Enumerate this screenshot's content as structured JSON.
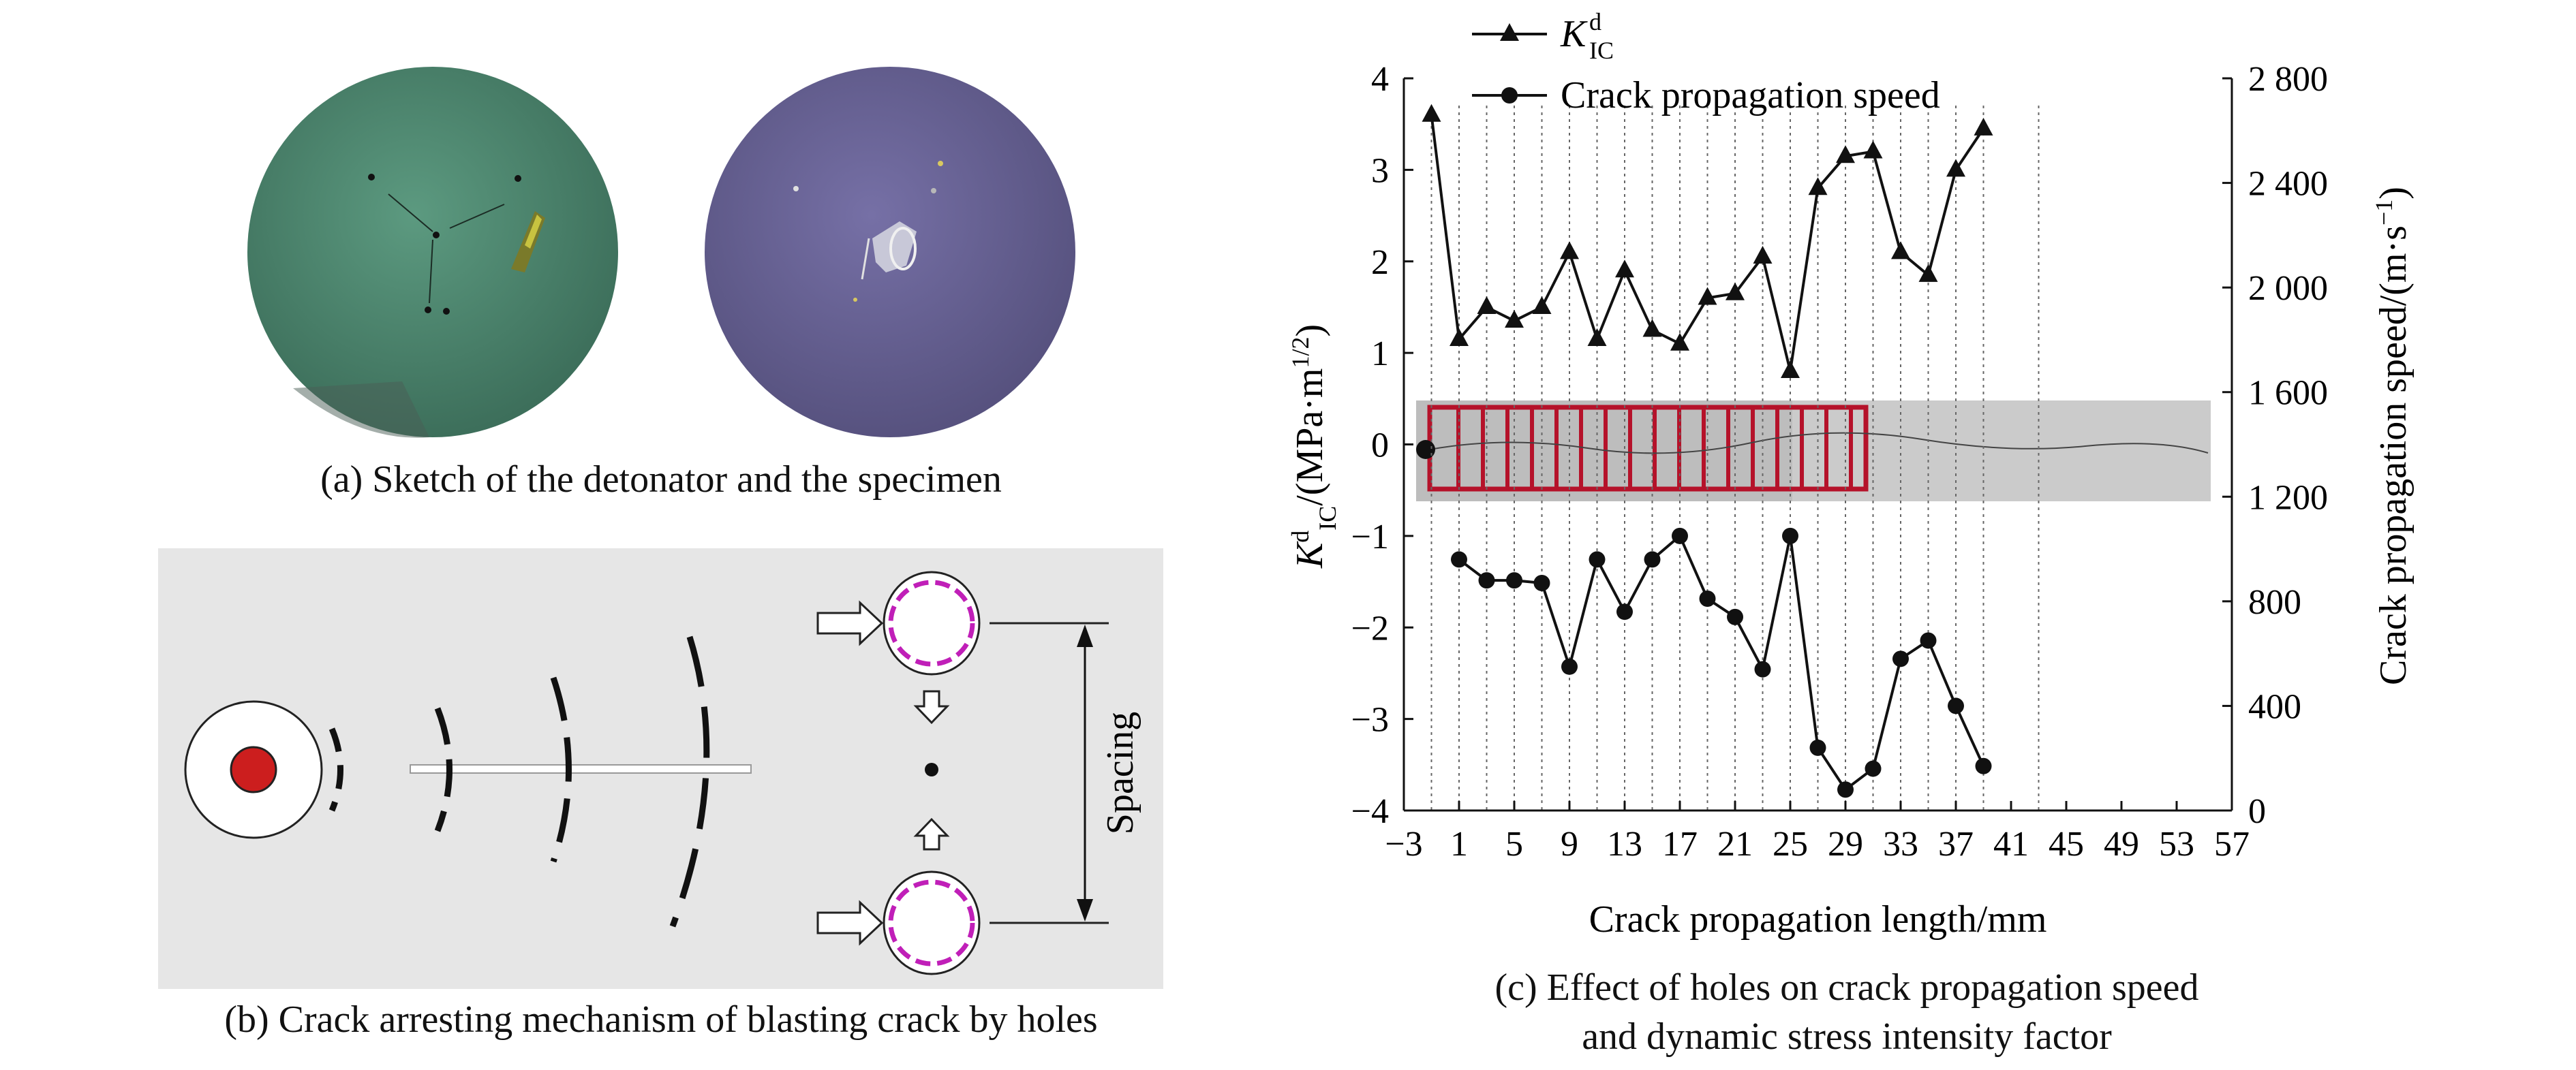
{
  "panel_a": {
    "caption": "(a) Sketch of the detonator and the specimen"
  },
  "panel_b": {
    "caption": "(b) Crack arresting mechanism of blasting crack by holes",
    "spacing_label": "Spacing"
  },
  "panel_c": {
    "caption_line1": "(c) Effect of holes on crack propagation speed",
    "caption_line2": "and dynamic stress intensity factor"
  },
  "colors": {
    "green_disk": "#4f8a72",
    "purple_disk": "#6b6597",
    "crack_red": "#b5122a",
    "hole_magenta": "#c01fb8",
    "strip_gray": "#bdbdbd"
  },
  "chart_data": {
    "type": "line",
    "xlabel": "Crack propagation length/mm",
    "ylabel_left": "K",
    "ylabel_left_sup": "d",
    "ylabel_left_sub": "IC",
    "ylabel_left_rest": "/(MPa·m",
    "ylabel_left_exp": "1/2",
    "ylabel_left_close": ")",
    "ylabel_right": "Crack propagation speed/(m·s",
    "ylabel_right_exp": "−1",
    "ylabel_right_close": ")",
    "xlim": [
      -3,
      57
    ],
    "ylim_left": [
      -4,
      4
    ],
    "ylim_right": [
      0,
      2800
    ],
    "x_ticks": [
      "−3",
      "1",
      "5",
      "9",
      "13",
      "17",
      "21",
      "25",
      "29",
      "33",
      "37",
      "41",
      "45",
      "49",
      "53",
      "57"
    ],
    "left_ticks": [
      "−4",
      "−3",
      "−2",
      "−1",
      "0",
      "1",
      "2",
      "3",
      "4"
    ],
    "right_ticks": [
      "0",
      "400",
      "800",
      "1 200",
      "1 600",
      "2 000",
      "2 400",
      "2 800"
    ],
    "legend": {
      "placement": "top-left",
      "k_label": "K",
      "k_sup": "d",
      "k_sub": "IC",
      "speed_label": "Crack propagation speed"
    },
    "series": [
      {
        "name": "KdIC",
        "axis": "left",
        "marker": "triangle",
        "x": [
          -1,
          1,
          3,
          5,
          7,
          9,
          11,
          13,
          15,
          17,
          19,
          21,
          23,
          25,
          27,
          29,
          31,
          33,
          35,
          37,
          39
        ],
        "y": [
          3.6,
          1.15,
          1.5,
          1.35,
          1.5,
          2.1,
          1.15,
          1.9,
          1.25,
          1.1,
          1.6,
          1.65,
          2.05,
          0.8,
          2.8,
          3.15,
          3.2,
          2.1,
          1.85,
          3.0,
          3.45
        ]
      },
      {
        "name": "Crack propagation speed",
        "axis": "right",
        "marker": "circle",
        "x": [
          1,
          3,
          5,
          7,
          9,
          11,
          13,
          15,
          17,
          19,
          21,
          23,
          25,
          27,
          29,
          31,
          33,
          35,
          37,
          39
        ],
        "y": [
          960,
          880,
          880,
          870,
          550,
          960,
          760,
          960,
          1050,
          810,
          740,
          540,
          1050,
          240,
          80,
          160,
          580,
          650,
          400,
          170
        ]
      }
    ],
    "vertical_dashed_x": [
      -1,
      1,
      3,
      5,
      7,
      9,
      11,
      13,
      15,
      17,
      19,
      21,
      23,
      25,
      27,
      29,
      31,
      33,
      35,
      37,
      39,
      43
    ]
  }
}
